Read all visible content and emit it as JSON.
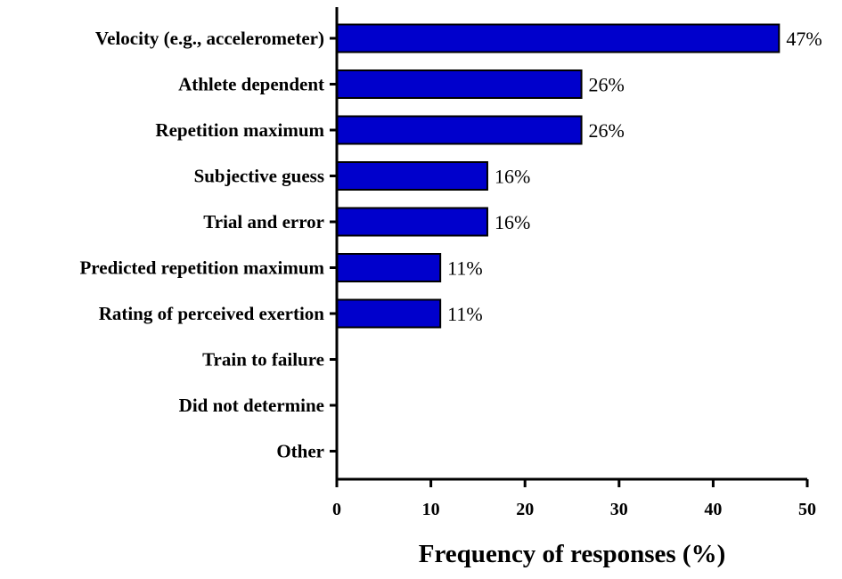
{
  "chart_data": {
    "type": "bar",
    "orientation": "horizontal",
    "categories": [
      "Velocity (e.g., accelerometer)",
      "Athlete dependent",
      "Repetition maximum",
      "Subjective guess",
      "Trial and error",
      "Predicted repetition maximum",
      "Rating of perceived exertion",
      "Train to failure",
      "Did not determine",
      "Other"
    ],
    "values": [
      47,
      26,
      26,
      16,
      16,
      11,
      11,
      0,
      0,
      0
    ],
    "data_labels": [
      "47%",
      "26%",
      "26%",
      "16%",
      "16%",
      "11%",
      "11%",
      "",
      "",
      ""
    ],
    "xlabel": "Frequency of responses (%)",
    "ylabel": "",
    "title": "",
    "xlim": [
      0,
      50
    ],
    "xticks": [
      0,
      10,
      20,
      30,
      40,
      50
    ],
    "grid": false,
    "legend": "none",
    "bar_color": "#0000CC",
    "bar_edge_color": "#000000"
  }
}
